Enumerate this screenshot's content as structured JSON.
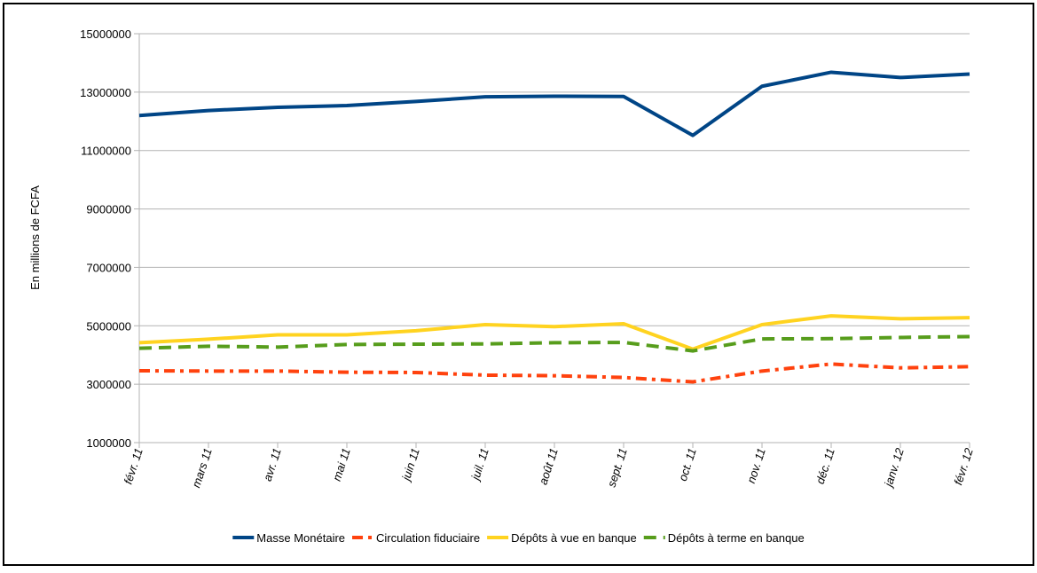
{
  "chart_data": {
    "type": "line",
    "y_label": "En millions de FCFA",
    "categories": [
      "févr. 11",
      "mars 11",
      "avr. 11",
      "mai 11",
      "juin 11",
      "juil. 11",
      "août 11",
      "sept. 11",
      "oct. 11",
      "nov. 11",
      "déc. 11",
      "janv. 12",
      "févr. 12"
    ],
    "series": [
      {
        "name": "Masse Monétaire",
        "color": "#004586",
        "dash": "solid",
        "values": [
          12200000,
          12370000,
          12480000,
          12540000,
          12680000,
          12840000,
          12860000,
          12850000,
          11520000,
          13200000,
          13680000,
          13500000,
          13620000
        ]
      },
      {
        "name": "Circulation fiduciaire",
        "color": "#ff420e",
        "dash": "dash-dot",
        "values": [
          3460000,
          3450000,
          3450000,
          3410000,
          3400000,
          3310000,
          3290000,
          3230000,
          3080000,
          3450000,
          3690000,
          3560000,
          3600000
        ]
      },
      {
        "name": "Dépôts à vue en banque",
        "color": "#ffd320",
        "dash": "solid",
        "values": [
          4420000,
          4540000,
          4690000,
          4690000,
          4830000,
          5040000,
          4970000,
          5070000,
          4200000,
          5040000,
          5340000,
          5240000,
          5280000
        ]
      },
      {
        "name": "Dépôts à terme en banque",
        "color": "#579d1c",
        "dash": "dash",
        "values": [
          4230000,
          4300000,
          4270000,
          4360000,
          4370000,
          4380000,
          4420000,
          4430000,
          4140000,
          4550000,
          4560000,
          4600000,
          4630000
        ]
      }
    ],
    "ylim": [
      1000000,
      15000000
    ],
    "yticks": [
      1000000,
      3000000,
      5000000,
      7000000,
      9000000,
      11000000,
      13000000,
      15000000
    ],
    "grid": true,
    "legend": "bottom"
  }
}
